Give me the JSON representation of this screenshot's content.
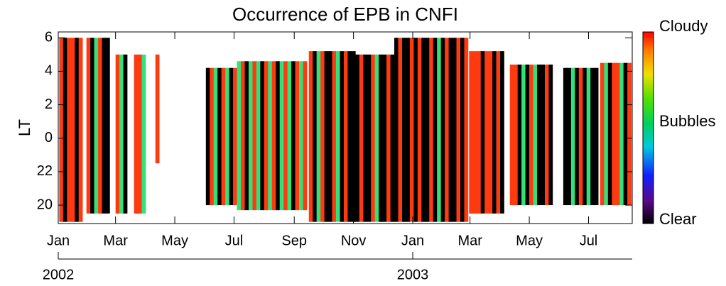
{
  "chart_data": {
    "type": "occurrence",
    "title": "Occurrence of EPB in CNFI",
    "y_label": "LT",
    "xlim": [
      0,
      591
    ],
    "xticks": [
      {
        "value": 0,
        "label": "Jan"
      },
      {
        "value": 59,
        "label": "Mar"
      },
      {
        "value": 120,
        "label": "May"
      },
      {
        "value": 181,
        "label": "Jul"
      },
      {
        "value": 243,
        "label": "Sep"
      },
      {
        "value": 304,
        "label": "Nov"
      },
      {
        "value": 365,
        "label": "Jan"
      },
      {
        "value": 424,
        "label": "Mar"
      },
      {
        "value": 485,
        "label": "May"
      },
      {
        "value": 546,
        "label": "Jul"
      }
    ],
    "year_ticks": [
      {
        "value": 0,
        "label": "2002"
      },
      {
        "value": 365,
        "label": "2003"
      }
    ],
    "ylim": [
      18.9,
      30.35
    ],
    "yticks": [
      20,
      22,
      {
        "value": 24,
        "label": "0"
      },
      {
        "value": 26,
        "label": "2"
      },
      {
        "value": 28,
        "label": "4"
      },
      {
        "value": 30,
        "label": "6"
      }
    ],
    "stripe_days": 4,
    "status_colors": [
      "#000000",
      "#33e07a",
      "#ff3a10"
    ],
    "colorbar_labels": [
      "Clear",
      "Bubbles",
      "Cloudy"
    ],
    "blocks": [
      {
        "x0": 1,
        "lt": [
          19,
          30
        ],
        "status": [
          2,
          0,
          2,
          2,
          0,
          2
        ]
      },
      {
        "x0": 29,
        "lt": [
          19.5,
          30
        ],
        "status": [
          2,
          0,
          1,
          2,
          0,
          0
        ]
      },
      {
        "x0": 59,
        "lt": [
          19.5,
          29
        ],
        "status": [
          2,
          1,
          0
        ]
      },
      {
        "x0": 78,
        "lt": [
          19.5,
          29
        ],
        "status": [
          2,
          2,
          1
        ]
      },
      {
        "x0": 100,
        "lt": [
          22.5,
          29
        ],
        "status": [
          2
        ]
      },
      {
        "x0": 152,
        "lt": [
          20,
          28.2
        ],
        "status": [
          0,
          2,
          1,
          0,
          2,
          1,
          0,
          2
        ]
      },
      {
        "x0": 184,
        "lt": [
          19.7,
          28.6
        ],
        "status": [
          1,
          2,
          0,
          1,
          2,
          1,
          0,
          2,
          1,
          2,
          0,
          1,
          2,
          1,
          0,
          2,
          1,
          2
        ]
      },
      {
        "x0": 258,
        "lt": [
          19,
          29.2
        ],
        "status": [
          2,
          0,
          1,
          2,
          0,
          0,
          2,
          1,
          0,
          2,
          0,
          0
        ]
      },
      {
        "x0": 306,
        "lt": [
          19,
          29
        ],
        "status": [
          0,
          2,
          0,
          0,
          2,
          1,
          0,
          0,
          2,
          0
        ]
      },
      {
        "x0": 346,
        "lt": [
          19,
          30
        ],
        "status": [
          0,
          2,
          0,
          0,
          2,
          0,
          2,
          0,
          0,
          2,
          0,
          1,
          0,
          2,
          0,
          0,
          2,
          0,
          2
        ]
      },
      {
        "x0": 423,
        "lt": [
          19.5,
          29.2
        ],
        "status": [
          2,
          2,
          2,
          0,
          2,
          2,
          0,
          2,
          0
        ]
      },
      {
        "x0": 465,
        "lt": [
          20,
          28.4
        ],
        "status": [
          2,
          2,
          0,
          1,
          0,
          2,
          1,
          0,
          0,
          2,
          0
        ]
      },
      {
        "x0": 520,
        "lt": [
          20,
          28.2
        ],
        "status": [
          0,
          0,
          1,
          0,
          2,
          0,
          1,
          0,
          0
        ]
      },
      {
        "x0": 558,
        "lt": [
          20,
          28.5
        ],
        "status": [
          2,
          1,
          0,
          2,
          2,
          1,
          0,
          2
        ]
      }
    ]
  }
}
